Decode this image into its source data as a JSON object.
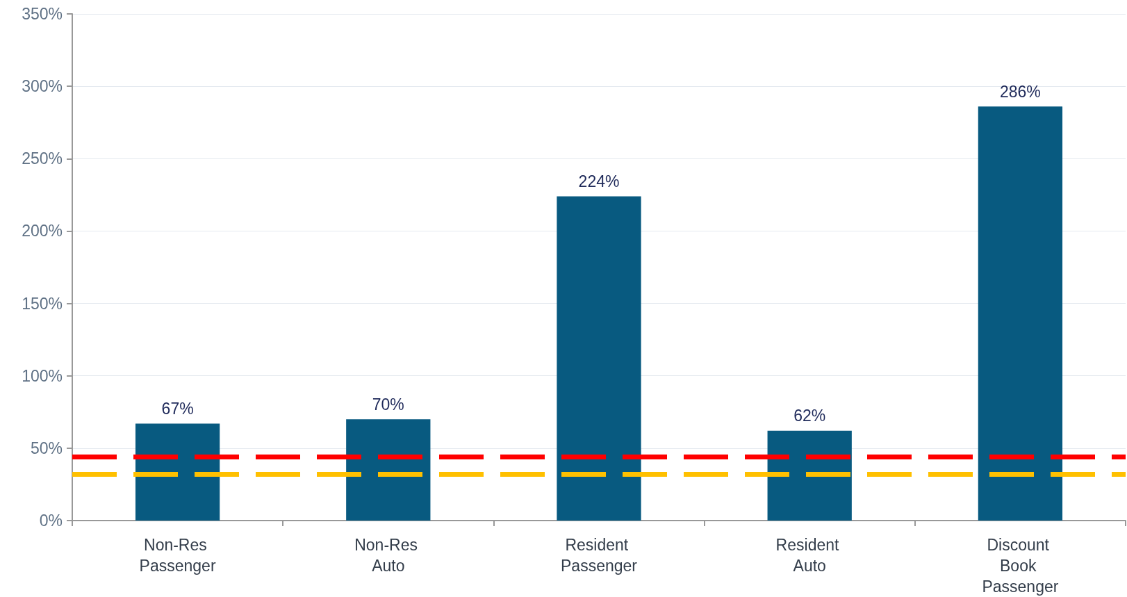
{
  "chart_data": {
    "type": "bar",
    "categories": [
      "Non-Res Passenger",
      "Non-Res Auto",
      "Resident Passenger",
      "Resident Auto",
      "Discount Book Passenger"
    ],
    "values": [
      67,
      70,
      224,
      62,
      286
    ],
    "color": "#085a80",
    "value_labels": [
      "67%",
      "70%",
      "224%",
      "62%",
      "286%"
    ],
    "ylim": [
      0,
      350
    ],
    "yticks": [
      {
        "value": 0,
        "label": "0%"
      },
      {
        "value": 50,
        "label": "50%"
      },
      {
        "value": 100,
        "label": "100%"
      },
      {
        "value": 150,
        "label": "150%"
      },
      {
        "value": 200,
        "label": "200%"
      },
      {
        "value": 250,
        "label": "250%"
      },
      {
        "value": 300,
        "label": "300%"
      },
      {
        "value": 350,
        "label": "350%"
      }
    ],
    "grid": "y",
    "ref_lines": [
      {
        "axis": "y",
        "value": 44,
        "color": "#ff0000",
        "line_style": "dashed"
      },
      {
        "axis": "y",
        "value": 32,
        "color": "#ffc000",
        "line_style": "dashed"
      }
    ]
  }
}
